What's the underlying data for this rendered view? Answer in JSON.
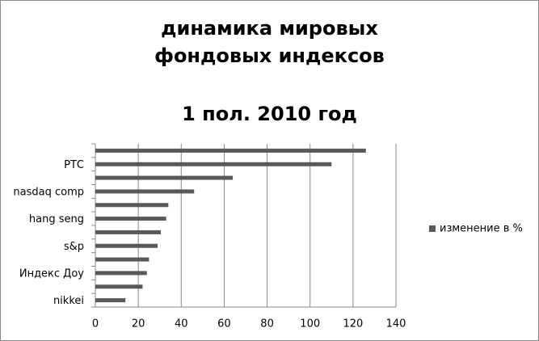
{
  "chart_data": {
    "type": "bar",
    "orientation": "horizontal",
    "title": "динамика мировых фондовых индексов",
    "subtitle": "1 пол. 2010 год",
    "categories": [
      null,
      "РТС",
      null,
      "nasdaq comp",
      null,
      "hang seng",
      null,
      "s&p",
      null,
      "Индекс Доу",
      null,
      "nikkei"
    ],
    "series": [
      {
        "name": "изменение в %",
        "color": "#595959",
        "values": [
          126,
          110,
          64,
          46,
          34,
          33,
          30.5,
          29,
          25,
          24,
          22,
          14
        ]
      }
    ],
    "xlim": [
      0,
      140
    ],
    "xticks": [
      0,
      20,
      40,
      60,
      80,
      100,
      120,
      140
    ],
    "grid": true,
    "legend": "right"
  }
}
